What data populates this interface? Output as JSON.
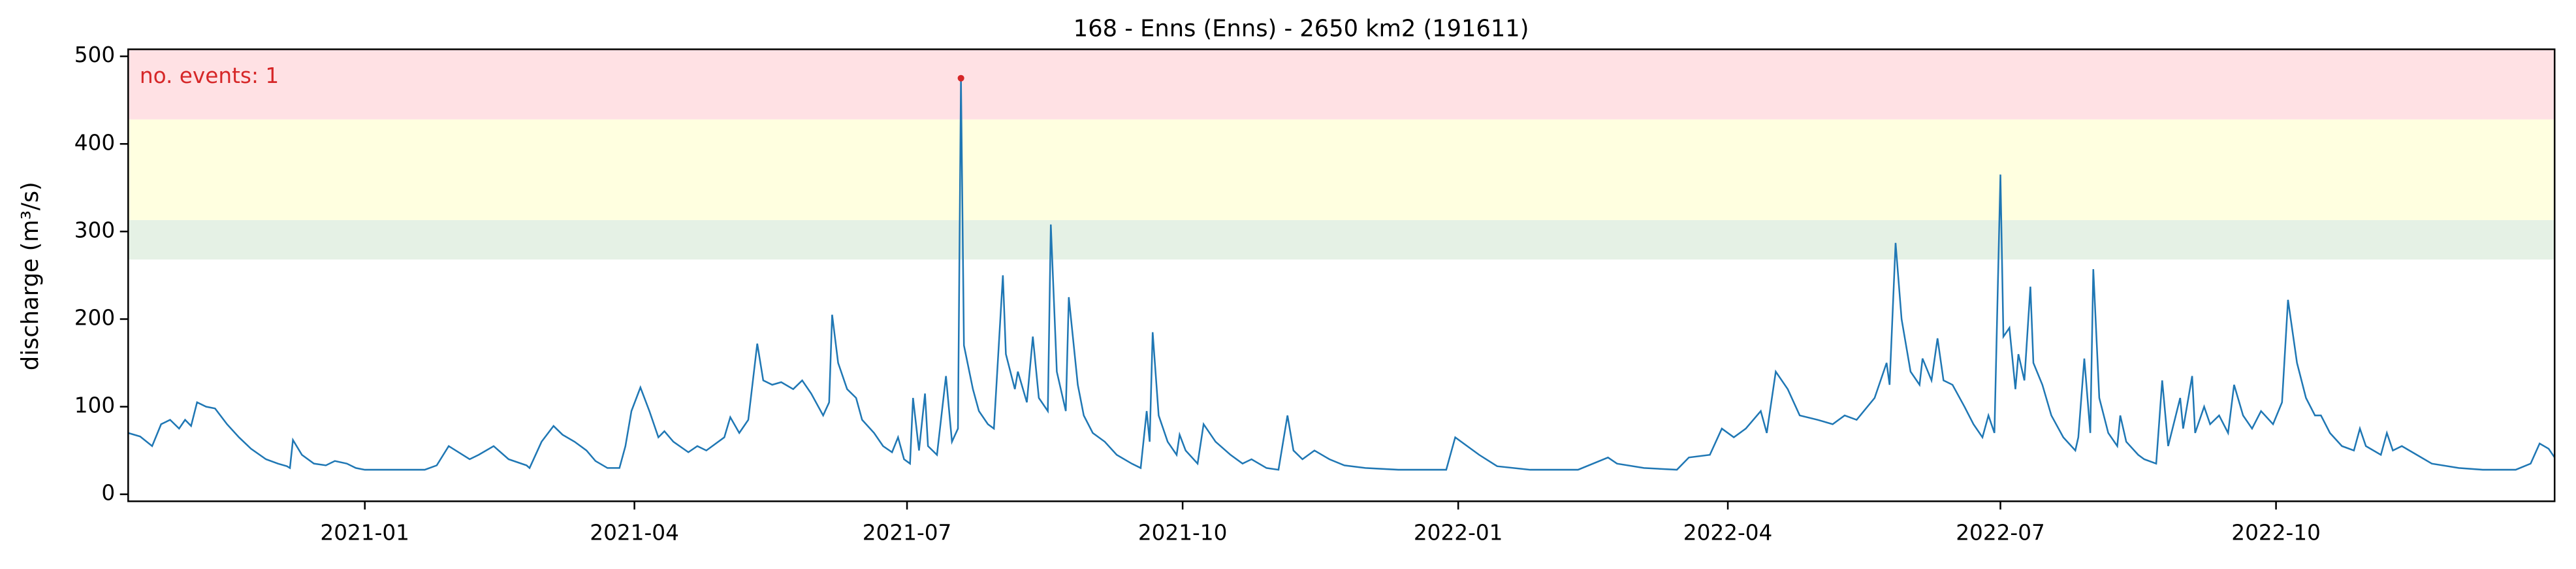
{
  "chart_data": {
    "type": "line",
    "title": "168 - Enns (Enns) - 2650 km2 (191611)",
    "y_label": "discharge (m³/s)",
    "annotation": "no. events: 1",
    "xlim": [
      -79,
      731
    ],
    "xticks": [
      {
        "value": 0,
        "label": "2021-01"
      },
      {
        "value": 90,
        "label": "2021-04"
      },
      {
        "value": 181,
        "label": "2021-07"
      },
      {
        "value": 273,
        "label": "2021-10"
      },
      {
        "value": 365,
        "label": "2022-01"
      },
      {
        "value": 455,
        "label": "2022-04"
      },
      {
        "value": 546,
        "label": "2022-07"
      },
      {
        "value": 638,
        "label": "2022-10"
      }
    ],
    "ylim": [
      -8,
      508
    ],
    "yticks": [
      0,
      100,
      200,
      300,
      400,
      500
    ],
    "bands": [
      {
        "from": 268,
        "to": 313,
        "color": "#e5f1e5"
      },
      {
        "from": 313,
        "to": 428,
        "color": "#ffffe0"
      },
      {
        "from": 428,
        "to": 508,
        "color": "#ffe1e4"
      }
    ],
    "events": {
      "x": [
        199
      ],
      "values": [
        475
      ],
      "color": "#d62728"
    },
    "series": [
      {
        "color": "#1f77b4",
        "x": [
          -79,
          -75,
          -71,
          -68,
          -65,
          -62,
          -60,
          -58,
          -56,
          -53,
          -50,
          -46,
          -42,
          -38,
          -33,
          -29,
          -26,
          -25,
          -24,
          -21,
          -17,
          -13,
          -10,
          -6,
          -3,
          0,
          10,
          20,
          24,
          28,
          35,
          38,
          43,
          48,
          54,
          55,
          59,
          63,
          66,
          70,
          74,
          77,
          81,
          85,
          87,
          89,
          92,
          95,
          98,
          100,
          103,
          108,
          111,
          114,
          120,
          122,
          125,
          128,
          131,
          133,
          136,
          139,
          143,
          146,
          149,
          153,
          155,
          156,
          158,
          161,
          164,
          166,
          170,
          173,
          176,
          178,
          180,
          182,
          183,
          185,
          187,
          188,
          191,
          194,
          196,
          198,
          199,
          200,
          203,
          205,
          208,
          210,
          213,
          214,
          217,
          218,
          221,
          223,
          225,
          228,
          229,
          231,
          233,
          234,
          235,
          238,
          240,
          243,
          247,
          251,
          256,
          259,
          261,
          262,
          263,
          265,
          268,
          271,
          272,
          274,
          278,
          280,
          284,
          289,
          293,
          296,
          301,
          305,
          308,
          310,
          313,
          317,
          322,
          327,
          334,
          345,
          361,
          364,
          368,
          372,
          378,
          389,
          405,
          415,
          418,
          427,
          438,
          442,
          449,
          453,
          457,
          461,
          466,
          468,
          471,
          475,
          479,
          485,
          490,
          494,
          498,
          504,
          508,
          509,
          511,
          513,
          516,
          519,
          520,
          523,
          525,
          527,
          530,
          534,
          537,
          540,
          542,
          544,
          546,
          547,
          549,
          551,
          552,
          554,
          556,
          557,
          560,
          563,
          567,
          571,
          572,
          574,
          576,
          577,
          579,
          582,
          585,
          586,
          588,
          592,
          594,
          598,
          600,
          602,
          606,
          607,
          610,
          611,
          614,
          616,
          619,
          622,
          624,
          627,
          630,
          633,
          637,
          640,
          642,
          645,
          648,
          651,
          653,
          656,
          660,
          664,
          666,
          668,
          673,
          675,
          677,
          680,
          685,
          690,
          699,
          707,
          718,
          723,
          726,
          729,
          731
        ],
        "values": [
          70,
          66,
          55,
          80,
          85,
          75,
          85,
          78,
          105,
          100,
          98,
          80,
          65,
          52,
          40,
          35,
          32,
          30,
          62,
          45,
          35,
          33,
          38,
          35,
          30,
          28,
          28,
          28,
          33,
          55,
          40,
          45,
          55,
          40,
          33,
          30,
          60,
          78,
          68,
          60,
          50,
          38,
          30,
          30,
          55,
          95,
          122,
          95,
          65,
          72,
          60,
          48,
          55,
          50,
          65,
          88,
          70,
          85,
          172,
          130,
          125,
          128,
          120,
          130,
          115,
          90,
          105,
          205,
          150,
          120,
          110,
          85,
          70,
          55,
          48,
          65,
          40,
          35,
          110,
          50,
          115,
          55,
          45,
          135,
          60,
          75,
          475,
          170,
          120,
          95,
          80,
          75,
          250,
          160,
          120,
          140,
          105,
          180,
          110,
          95,
          308,
          140,
          110,
          95,
          225,
          125,
          90,
          70,
          60,
          45,
          35,
          30,
          95,
          60,
          185,
          90,
          60,
          45,
          68,
          50,
          35,
          80,
          60,
          45,
          35,
          40,
          30,
          28,
          90,
          50,
          40,
          50,
          40,
          33,
          30,
          28,
          28,
          65,
          55,
          45,
          32,
          28,
          28,
          42,
          35,
          30,
          28,
          42,
          45,
          75,
          65,
          75,
          95,
          70,
          140,
          120,
          90,
          85,
          80,
          90,
          85,
          110,
          150,
          125,
          287,
          200,
          140,
          125,
          155,
          130,
          178,
          130,
          125,
          100,
          80,
          65,
          90,
          70,
          365,
          180,
          190,
          120,
          160,
          130,
          237,
          150,
          125,
          90,
          65,
          50,
          65,
          155,
          70,
          257,
          110,
          70,
          55,
          90,
          60,
          45,
          40,
          35,
          130,
          55,
          110,
          75,
          135,
          70,
          100,
          80,
          90,
          70,
          125,
          90,
          75,
          95,
          80,
          105,
          222,
          150,
          110,
          90,
          90,
          70,
          55,
          50,
          75,
          55,
          45,
          70,
          50,
          55,
          45,
          35,
          30,
          28,
          28,
          35,
          58,
          52,
          42
        ]
      }
    ]
  }
}
